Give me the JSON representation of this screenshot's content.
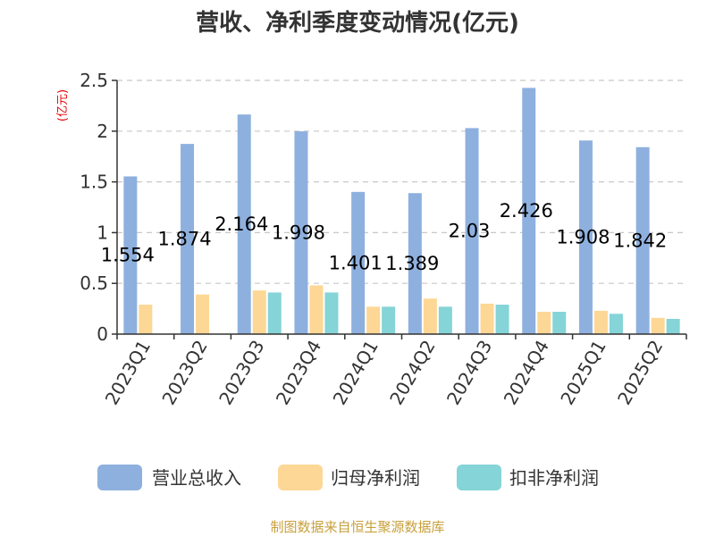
{
  "chart_data": {
    "type": "bar",
    "title": "营收、净利季度变动情况(亿元)",
    "ylabel": "(亿元)",
    "xlabel": "",
    "ylim": [
      0,
      2.5
    ],
    "yticks": [
      "0",
      "0.5",
      "1",
      "1.5",
      "2",
      "2.5"
    ],
    "grid": true,
    "legend_position": "bottom",
    "categories": [
      "2023Q1",
      "2023Q2",
      "2023Q3",
      "2023Q4",
      "2024Q1",
      "2024Q2",
      "2024Q3",
      "2024Q4",
      "2025Q1",
      "2025Q2"
    ],
    "series": [
      {
        "name": "营业总收入",
        "color": "#8eb0de",
        "values": [
          1.554,
          1.874,
          2.164,
          1.998,
          1.401,
          1.389,
          2.03,
          2.426,
          1.908,
          1.842
        ]
      },
      {
        "name": "归母净利润",
        "color": "#fdd795",
        "values": [
          0.29,
          0.39,
          0.43,
          0.48,
          0.27,
          0.35,
          0.3,
          0.22,
          0.23,
          0.16
        ]
      },
      {
        "name": "扣非净利润",
        "color": "#85d4d7",
        "values": [
          0.0,
          0.0,
          0.41,
          0.41,
          0.27,
          0.27,
          0.29,
          0.22,
          0.2,
          0.15
        ]
      }
    ],
    "data_labels": [
      "1.554",
      "1.874",
      "2.164",
      "1.998",
      "1.401",
      "1.389",
      "2.03",
      "2.426",
      "1.908",
      "1.842"
    ]
  },
  "source": "制图数据来自恒生聚源数据库"
}
